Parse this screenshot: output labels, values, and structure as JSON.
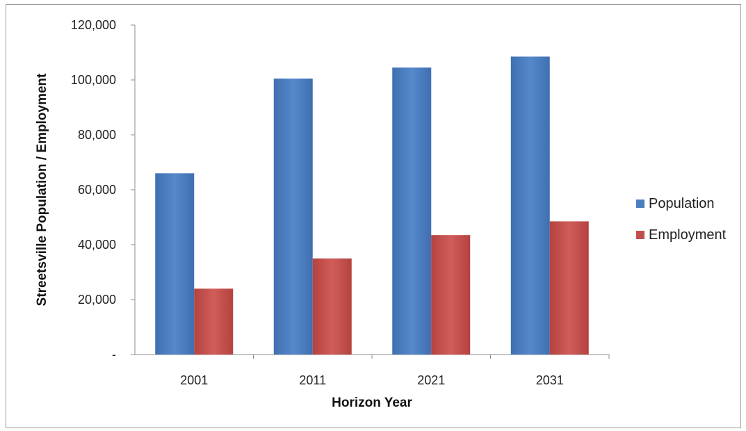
{
  "chart_data": {
    "type": "bar",
    "title": "",
    "xlabel": "Horizon Year",
    "ylabel": "Streetsville Population / Employment",
    "categories": [
      "2001",
      "2011",
      "2021",
      "2031"
    ],
    "series": [
      {
        "name": "Population",
        "values": [
          66000,
          100500,
          104500,
          108500
        ],
        "color": "#4a7ebf"
      },
      {
        "name": "Employment",
        "values": [
          24000,
          35000,
          43500,
          48500
        ],
        "color": "#c0504d"
      }
    ],
    "ylim": [
      0,
      120000
    ],
    "yticks": [
      0,
      20000,
      40000,
      60000,
      80000,
      100000,
      120000
    ],
    "ytick_labels": [
      "-",
      "20,000",
      "40,000",
      "60,000",
      "80,000",
      "100,000",
      "120,000"
    ],
    "grid": false,
    "legend_position": "right"
  }
}
